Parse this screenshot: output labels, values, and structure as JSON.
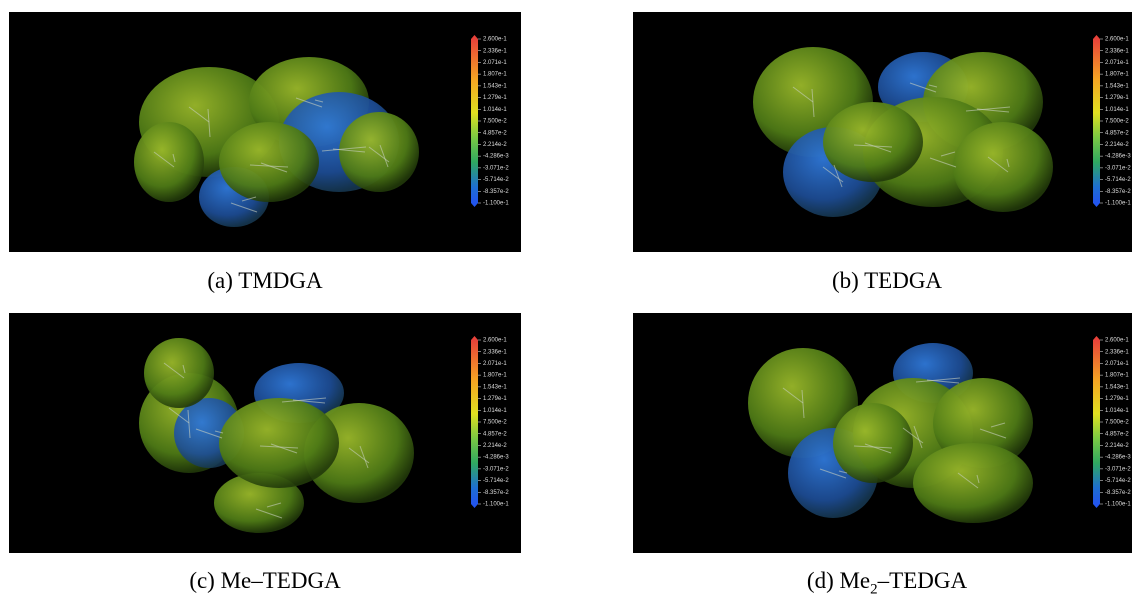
{
  "colorbar_labels": [
    "2.600e-1",
    "2.336e-1",
    "2.071e-1",
    "1.807e-1",
    "1.543e-1",
    "1.279e-1",
    "1.014e-1",
    "7.500e-2",
    "4.857e-2",
    "2.214e-2",
    "-4.286e-3",
    "-3.071e-2",
    "-5.714e-2",
    "-8.357e-2",
    "-1.100e-1"
  ],
  "panels": [
    {
      "tag": "(a)",
      "text": "TMDGA"
    },
    {
      "tag": "(b)",
      "text": "TEDGA"
    },
    {
      "tag": "(c)",
      "text": "Me–TEDGA"
    },
    {
      "tag": "(d)",
      "text": "Me",
      "subscript": "2",
      "suffix": "–TEDGA"
    }
  ]
}
